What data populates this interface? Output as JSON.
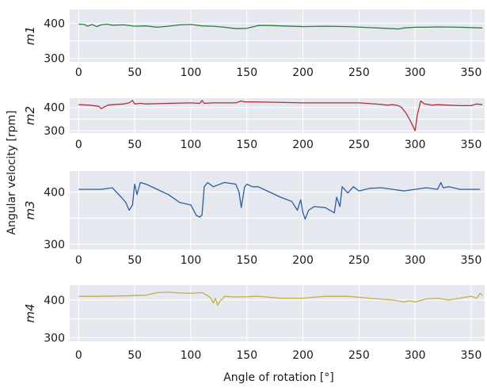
{
  "chart_data": {
    "type": "line",
    "xlabel": "Angle of rotation [°]",
    "ylabel": "Angular velocity [rpm]",
    "xlim": [
      -8,
      362
    ],
    "x_ticks": [
      0,
      50,
      100,
      150,
      200,
      250,
      300,
      350
    ],
    "y_ticks": [
      300,
      400
    ],
    "grid": true,
    "panels": [
      {
        "name": "m1",
        "color": "#2e7d3a",
        "ylim": [
          290,
          440
        ],
        "x": [
          0,
          5,
          8,
          12,
          16,
          20,
          25,
          30,
          40,
          50,
          60,
          70,
          80,
          90,
          100,
          110,
          120,
          130,
          140,
          150,
          160,
          170,
          180,
          200,
          220,
          240,
          260,
          280,
          285,
          290,
          300,
          310,
          320,
          340,
          360
        ],
        "y": [
          398,
          397,
          392,
          397,
          391,
          396,
          398,
          395,
          396,
          392,
          393,
          389,
          392,
          396,
          397,
          393,
          392,
          389,
          385,
          386,
          394,
          394,
          393,
          391,
          392,
          391,
          388,
          385,
          384,
          387,
          389,
          389,
          390,
          389,
          387
        ]
      },
      {
        "name": "m2",
        "color": "#b0303a",
        "ylim": [
          290,
          440
        ],
        "x": [
          0,
          10,
          18,
          20,
          23,
          26,
          30,
          40,
          45,
          48,
          50,
          55,
          60,
          80,
          100,
          108,
          110,
          112,
          120,
          140,
          145,
          148,
          155,
          170,
          200,
          230,
          250,
          270,
          275,
          280,
          285,
          288,
          292,
          296,
          298,
          300,
          302,
          305,
          308,
          315,
          320,
          330,
          340,
          350,
          355,
          360
        ],
        "y": [
          412,
          410,
          405,
          395,
          402,
          410,
          412,
          415,
          420,
          430,
          415,
          418,
          415,
          418,
          420,
          418,
          430,
          418,
          420,
          420,
          428,
          424,
          424,
          423,
          420,
          420,
          420,
          413,
          410,
          412,
          408,
          400,
          375,
          340,
          320,
          300,
          368,
          428,
          416,
          410,
          412,
          410,
          408,
          408,
          415,
          412
        ]
      },
      {
        "name": "m3",
        "color": "#2e5d9b",
        "ylim": [
          290,
          440
        ],
        "x": [
          0,
          10,
          20,
          30,
          38,
          42,
          45,
          48,
          50,
          52,
          55,
          60,
          70,
          80,
          90,
          100,
          105,
          108,
          110,
          112,
          115,
          120,
          130,
          140,
          143,
          145,
          148,
          150,
          155,
          160,
          170,
          180,
          190,
          195,
          198,
          200,
          202,
          205,
          210,
          220,
          228,
          230,
          233,
          235,
          240,
          245,
          250,
          260,
          270,
          280,
          290,
          300,
          310,
          320,
          323,
          325,
          330,
          340,
          350,
          358
        ],
        "y": [
          405,
          405,
          405,
          408,
          390,
          380,
          365,
          375,
          415,
          395,
          418,
          415,
          405,
          395,
          380,
          375,
          355,
          352,
          356,
          410,
          418,
          410,
          418,
          415,
          400,
          370,
          410,
          415,
          410,
          410,
          400,
          390,
          382,
          365,
          385,
          360,
          348,
          365,
          372,
          370,
          360,
          390,
          372,
          410,
          398,
          410,
          402,
          407,
          408,
          405,
          402,
          405,
          408,
          405,
          418,
          408,
          410,
          405,
          405,
          405
        ]
      },
      {
        "name": "m4",
        "color": "#c4ad4c",
        "ylim": [
          290,
          440
        ],
        "x": [
          0,
          20,
          40,
          60,
          70,
          80,
          90,
          100,
          110,
          115,
          118,
          120,
          122,
          124,
          126,
          128,
          130,
          140,
          160,
          180,
          200,
          220,
          240,
          260,
          280,
          290,
          295,
          300,
          310,
          320,
          330,
          340,
          350,
          355,
          358,
          360
        ],
        "y": [
          410,
          410,
          411,
          413,
          420,
          421,
          419,
          418,
          420,
          412,
          405,
          392,
          405,
          386,
          398,
          402,
          410,
          408,
          410,
          405,
          405,
          410,
          410,
          405,
          400,
          395,
          398,
          395,
          403,
          405,
          400,
          405,
          410,
          405,
          418,
          412
        ]
      }
    ]
  }
}
